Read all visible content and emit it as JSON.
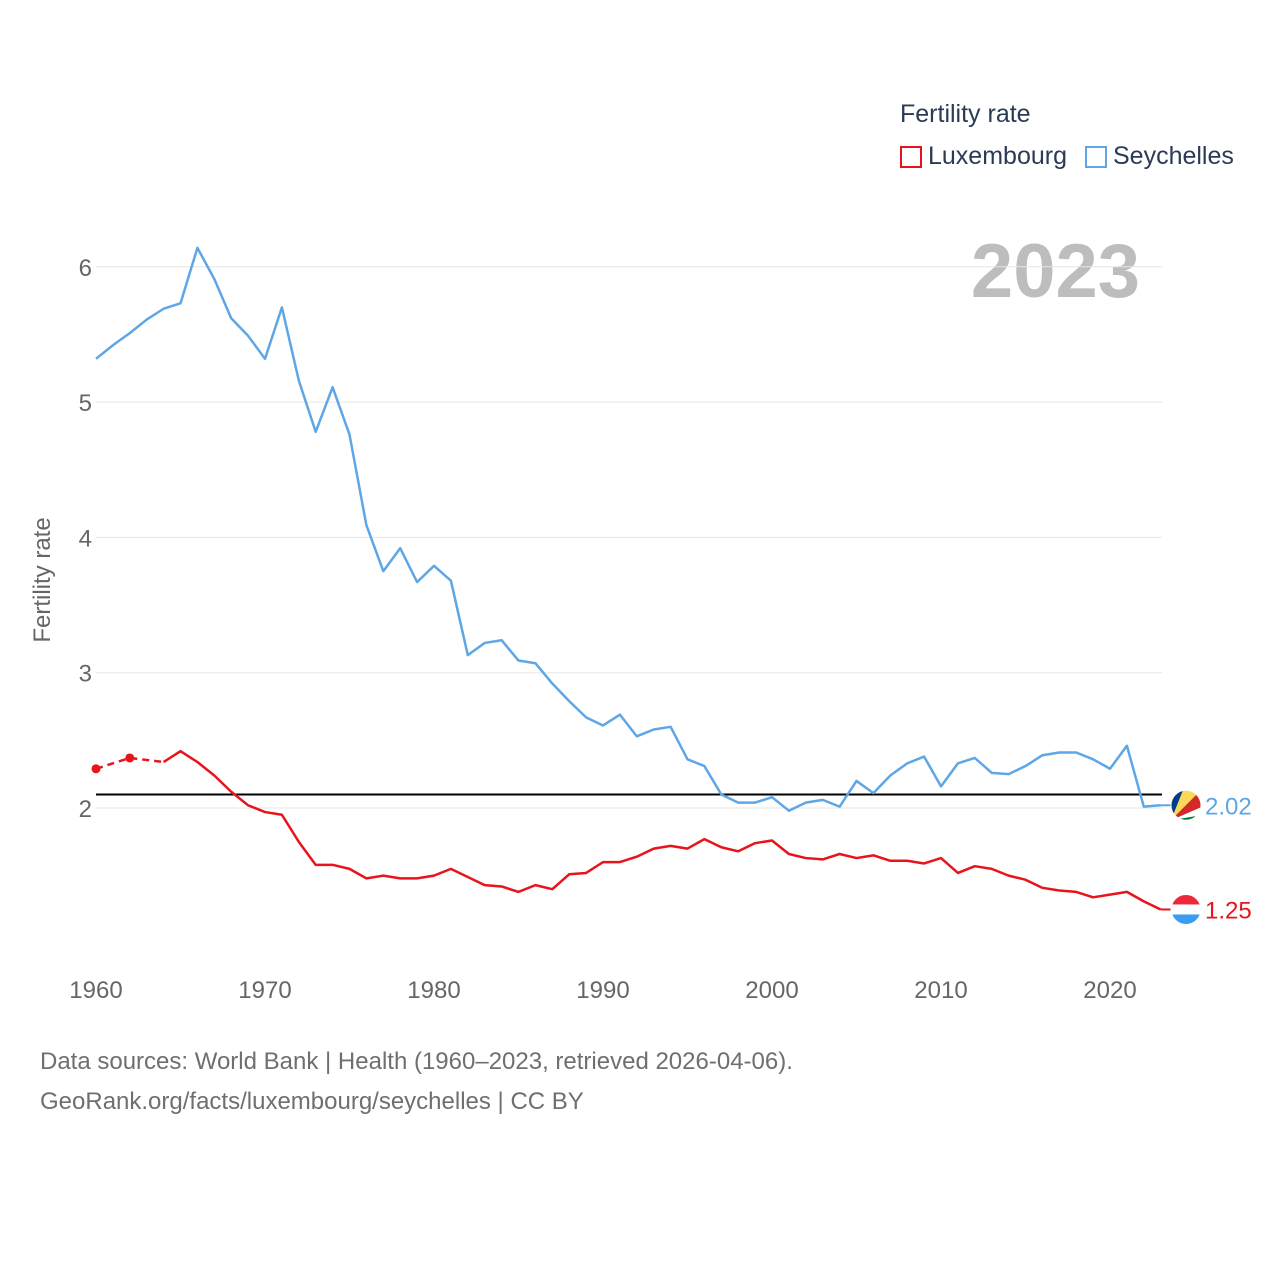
{
  "legend": {
    "title": "Fertility rate",
    "items": [
      {
        "label": "Luxembourg",
        "color": "#e8141b"
      },
      {
        "label": "Seychelles",
        "color": "#5ea6e5"
      }
    ]
  },
  "current_year": "2023",
  "footer": {
    "line1": "Data sources: World Bank | Health (1960–2023, retrieved 2026-04-06).",
    "line2": "GeoRank.org/facts/luxembourg/seychelles | CC BY"
  },
  "chart_data": {
    "type": "line",
    "title": "Fertility rate",
    "xlabel": "",
    "ylabel": "Fertility rate",
    "xlim": [
      1960,
      2023
    ],
    "ylim": [
      1,
      6.5
    ],
    "x_ticks": [
      1960,
      1970,
      1980,
      1990,
      2000,
      2010,
      2020
    ],
    "y_ticks": [
      2,
      3,
      4,
      5,
      6
    ],
    "grid": true,
    "reference_line": {
      "value": 2.1,
      "color": "#000000"
    },
    "series": [
      {
        "name": "Luxembourg",
        "color": "#e8141b",
        "end_label": "1.25",
        "estimated_points": [
          [
            1960,
            2.29
          ],
          [
            1962,
            2.37
          ]
        ],
        "dashed_until": 1964,
        "points": [
          [
            1960,
            2.29
          ],
          [
            1962,
            2.37
          ],
          [
            1964,
            2.34
          ],
          [
            1965,
            2.42
          ],
          [
            1966,
            2.34
          ],
          [
            1967,
            2.24
          ],
          [
            1968,
            2.12
          ],
          [
            1969,
            2.02
          ],
          [
            1970,
            1.97
          ],
          [
            1971,
            1.95
          ],
          [
            1972,
            1.75
          ],
          [
            1973,
            1.58
          ],
          [
            1974,
            1.58
          ],
          [
            1975,
            1.55
          ],
          [
            1976,
            1.48
          ],
          [
            1977,
            1.5
          ],
          [
            1978,
            1.48
          ],
          [
            1979,
            1.48
          ],
          [
            1980,
            1.5
          ],
          [
            1981,
            1.55
          ],
          [
            1982,
            1.49
          ],
          [
            1983,
            1.43
          ],
          [
            1984,
            1.42
          ],
          [
            1985,
            1.38
          ],
          [
            1986,
            1.43
          ],
          [
            1987,
            1.4
          ],
          [
            1988,
            1.51
          ],
          [
            1989,
            1.52
          ],
          [
            1990,
            1.6
          ],
          [
            1991,
            1.6
          ],
          [
            1992,
            1.64
          ],
          [
            1993,
            1.7
          ],
          [
            1994,
            1.72
          ],
          [
            1995,
            1.7
          ],
          [
            1996,
            1.77
          ],
          [
            1997,
            1.71
          ],
          [
            1998,
            1.68
          ],
          [
            1999,
            1.74
          ],
          [
            2000,
            1.76
          ],
          [
            2001,
            1.66
          ],
          [
            2002,
            1.63
          ],
          [
            2003,
            1.62
          ],
          [
            2004,
            1.66
          ],
          [
            2005,
            1.63
          ],
          [
            2006,
            1.65
          ],
          [
            2007,
            1.61
          ],
          [
            2008,
            1.61
          ],
          [
            2009,
            1.59
          ],
          [
            2010,
            1.63
          ],
          [
            2011,
            1.52
          ],
          [
            2012,
            1.57
          ],
          [
            2013,
            1.55
          ],
          [
            2014,
            1.5
          ],
          [
            2015,
            1.47
          ],
          [
            2016,
            1.41
          ],
          [
            2017,
            1.39
          ],
          [
            2018,
            1.38
          ],
          [
            2019,
            1.34
          ],
          [
            2020,
            1.36
          ],
          [
            2021,
            1.38
          ],
          [
            2022,
            1.31
          ],
          [
            2023,
            1.25
          ]
        ]
      },
      {
        "name": "Seychelles",
        "color": "#5ea6e5",
        "end_label": "2.02",
        "points": [
          [
            1960,
            5.32
          ],
          [
            1961,
            5.42
          ],
          [
            1962,
            5.51
          ],
          [
            1963,
            5.61
          ],
          [
            1964,
            5.69
          ],
          [
            1965,
            5.73
          ],
          [
            1966,
            6.14
          ],
          [
            1967,
            5.91
          ],
          [
            1968,
            5.62
          ],
          [
            1969,
            5.49
          ],
          [
            1970,
            5.32
          ],
          [
            1971,
            5.7
          ],
          [
            1972,
            5.16
          ],
          [
            1973,
            4.78
          ],
          [
            1974,
            5.11
          ],
          [
            1975,
            4.76
          ],
          [
            1976,
            4.09
          ],
          [
            1977,
            3.75
          ],
          [
            1978,
            3.92
          ],
          [
            1979,
            3.67
          ],
          [
            1980,
            3.79
          ],
          [
            1981,
            3.68
          ],
          [
            1982,
            3.13
          ],
          [
            1983,
            3.22
          ],
          [
            1984,
            3.24
          ],
          [
            1985,
            3.09
          ],
          [
            1986,
            3.07
          ],
          [
            1987,
            2.92
          ],
          [
            1988,
            2.79
          ],
          [
            1989,
            2.67
          ],
          [
            1990,
            2.61
          ],
          [
            1991,
            2.69
          ],
          [
            1992,
            2.53
          ],
          [
            1993,
            2.58
          ],
          [
            1994,
            2.6
          ],
          [
            1995,
            2.36
          ],
          [
            1996,
            2.31
          ],
          [
            1997,
            2.1
          ],
          [
            1998,
            2.04
          ],
          [
            1999,
            2.04
          ],
          [
            2000,
            2.08
          ],
          [
            2001,
            1.98
          ],
          [
            2002,
            2.04
          ],
          [
            2003,
            2.06
          ],
          [
            2004,
            2.01
          ],
          [
            2005,
            2.2
          ],
          [
            2006,
            2.11
          ],
          [
            2007,
            2.24
          ],
          [
            2008,
            2.33
          ],
          [
            2009,
            2.38
          ],
          [
            2010,
            2.16
          ],
          [
            2011,
            2.33
          ],
          [
            2012,
            2.37
          ],
          [
            2013,
            2.26
          ],
          [
            2014,
            2.25
          ],
          [
            2015,
            2.31
          ],
          [
            2016,
            2.39
          ],
          [
            2017,
            2.41
          ],
          [
            2018,
            2.41
          ],
          [
            2019,
            2.36
          ],
          [
            2020,
            2.29
          ],
          [
            2021,
            2.46
          ],
          [
            2022,
            2.01
          ],
          [
            2023,
            2.02
          ]
        ]
      }
    ]
  }
}
